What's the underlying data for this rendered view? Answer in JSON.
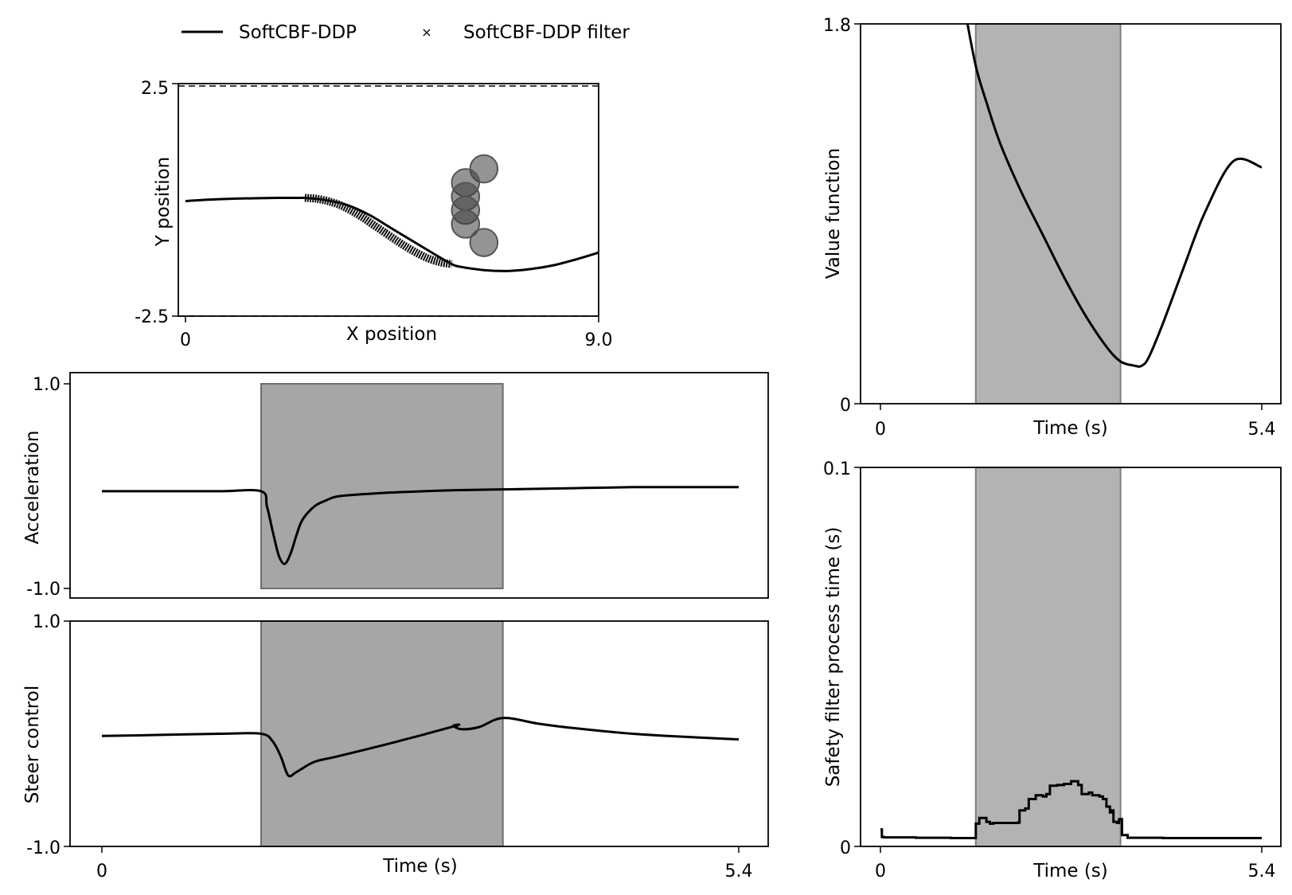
{
  "legend": {
    "items": [
      {
        "label": "SoftCBF-DDP",
        "marker": "line"
      },
      {
        "label": "SoftCBF-DDP filter",
        "marker": "x"
      }
    ]
  },
  "chart_data": [
    {
      "id": "trajectory",
      "type": "line",
      "xlabel": "X position",
      "ylabel": "Y position",
      "xlim": [
        0,
        9.0
      ],
      "ylim": [
        -2.5,
        2.5
      ],
      "xticks": [
        "0",
        "9.0"
      ],
      "yticks": [
        "-2.5",
        "2.5"
      ],
      "boundaries": [
        -2.5,
        2.5
      ],
      "obstacles": [
        {
          "x": 6.5,
          "y": 0.7,
          "r": 0.3
        },
        {
          "x": 6.1,
          "y": 0.4,
          "r": 0.3
        },
        {
          "x": 6.1,
          "y": 0.1,
          "r": 0.3
        },
        {
          "x": 6.1,
          "y": -0.2,
          "r": 0.3
        },
        {
          "x": 6.1,
          "y": -0.5,
          "r": 0.3
        },
        {
          "x": 6.5,
          "y": -0.9,
          "r": 0.3
        }
      ],
      "series": [
        {
          "name": "SoftCBF-DDP",
          "x": [
            0.0,
            0.5,
            1.0,
            1.5,
            2.0,
            2.5,
            2.6,
            3.0,
            3.5,
            4.0,
            4.5,
            5.0,
            5.5,
            5.8,
            6.0,
            6.5,
            7.0,
            7.5,
            8.0,
            8.5,
            9.0
          ],
          "y": [
            0.0,
            0.03,
            0.05,
            0.06,
            0.07,
            0.07,
            0.07,
            0.03,
            -0.08,
            -0.3,
            -0.6,
            -0.9,
            -1.2,
            -1.37,
            -1.43,
            -1.5,
            -1.52,
            -1.48,
            -1.4,
            -1.27,
            -1.12
          ]
        },
        {
          "name": "SoftCBF-DDP filter",
          "x": [
            2.6,
            2.85,
            3.1,
            3.35,
            3.6,
            3.85,
            4.1,
            4.35,
            4.6,
            4.85,
            5.1,
            5.35,
            5.6,
            5.8
          ],
          "y": [
            0.07,
            0.05,
            0.0,
            -0.08,
            -0.2,
            -0.35,
            -0.52,
            -0.69,
            -0.86,
            -1.02,
            -1.16,
            -1.27,
            -1.34,
            -1.37
          ]
        }
      ]
    },
    {
      "id": "acceleration",
      "type": "line",
      "xlabel": "",
      "ylabel": "Acceleration",
      "xlim": [
        0,
        5.4
      ],
      "ylim": [
        -1.0,
        1.0
      ],
      "yticks": [
        "-1.0",
        "1.0"
      ],
      "highlight": [
        1.35,
        3.4
      ],
      "series": [
        {
          "name": "SoftCBF-DDP",
          "x": [
            0.0,
            0.5,
            1.0,
            1.35,
            1.4,
            1.45,
            1.5,
            1.55,
            1.6,
            1.65,
            1.7,
            1.8,
            1.9,
            2.0,
            2.2,
            2.5,
            3.0,
            3.5,
            4.0,
            4.5,
            5.0,
            5.4
          ],
          "y": [
            -0.05,
            -0.05,
            -0.05,
            -0.05,
            -0.2,
            -0.45,
            -0.68,
            -0.76,
            -0.66,
            -0.48,
            -0.33,
            -0.2,
            -0.14,
            -0.1,
            -0.08,
            -0.06,
            -0.04,
            -0.03,
            -0.02,
            -0.01,
            -0.01,
            -0.01
          ]
        }
      ]
    },
    {
      "id": "steer",
      "type": "line",
      "xlabel": "Time (s)",
      "ylabel": "Steer control",
      "xlim": [
        0,
        5.4
      ],
      "ylim": [
        -1.0,
        1.0
      ],
      "xticks": [
        "0",
        "5.4"
      ],
      "yticks": [
        "-1.0",
        "1.0"
      ],
      "highlight": [
        1.35,
        3.4
      ],
      "series": [
        {
          "name": "SoftCBF-DDP",
          "x": [
            0.0,
            0.5,
            1.0,
            1.35,
            1.45,
            1.52,
            1.58,
            1.65,
            1.8,
            2.0,
            2.5,
            3.0,
            2.98,
            3.05,
            3.2,
            3.4,
            3.7,
            4.0,
            4.5,
            5.0,
            5.4
          ],
          "y": [
            -0.02,
            -0.01,
            0.0,
            0.0,
            -0.07,
            -0.21,
            -0.37,
            -0.34,
            -0.25,
            -0.2,
            -0.07,
            0.07,
            0.07,
            0.04,
            0.06,
            0.14,
            0.09,
            0.05,
            0.0,
            -0.03,
            -0.05
          ]
        }
      ]
    },
    {
      "id": "value",
      "type": "line",
      "xlabel": "Time (s)",
      "ylabel": "Value function",
      "xlim": [
        0,
        5.4
      ],
      "ylim": [
        0,
        1.8
      ],
      "xticks": [
        "0",
        "5.4"
      ],
      "yticks": [
        "0",
        "1.8"
      ],
      "highlight": [
        1.35,
        3.4
      ],
      "series": [
        {
          "name": "SoftCBF-DDP",
          "x": [
            1.2,
            1.35,
            1.5,
            1.7,
            2.0,
            2.3,
            2.6,
            2.9,
            3.2,
            3.4,
            3.6,
            3.7,
            3.8,
            4.0,
            4.3,
            4.6,
            5.0,
            5.4
          ],
          "y": [
            1.86,
            1.6,
            1.43,
            1.23,
            1.0,
            0.8,
            0.6,
            0.42,
            0.27,
            0.2,
            0.18,
            0.18,
            0.22,
            0.38,
            0.65,
            0.91,
            1.15,
            1.12
          ]
        }
      ]
    },
    {
      "id": "process-time",
      "type": "line",
      "xlabel": "Time (s)",
      "ylabel": "Safety filter process time (s)",
      "xlim": [
        0,
        5.4
      ],
      "ylim": [
        0,
        0.1
      ],
      "xticks": [
        "0",
        "5.4"
      ],
      "yticks": [
        "0",
        "0.1"
      ],
      "highlight": [
        1.35,
        3.4
      ],
      "series": [
        {
          "name": "SoftCBF-DDP filter",
          "x": [
            0.0,
            0.02,
            0.05,
            0.5,
            1.0,
            1.33,
            1.35,
            1.4,
            1.5,
            1.55,
            1.6,
            1.95,
            1.97,
            2.05,
            2.1,
            2.2,
            2.3,
            2.35,
            2.4,
            2.5,
            2.6,
            2.7,
            2.8,
            2.85,
            2.95,
            3.0,
            3.1,
            3.15,
            3.2,
            3.25,
            3.28,
            3.3,
            3.35,
            3.38,
            3.42,
            3.5,
            4.0,
            4.5,
            5.0,
            5.4
          ],
          "y": [
            0.0045,
            0.0025,
            0.0024,
            0.0023,
            0.0022,
            0.0022,
            0.006,
            0.0075,
            0.0065,
            0.006,
            0.0062,
            0.0063,
            0.0095,
            0.01,
            0.0125,
            0.0135,
            0.0132,
            0.0138,
            0.016,
            0.0162,
            0.0165,
            0.0172,
            0.0162,
            0.0138,
            0.0142,
            0.0135,
            0.0132,
            0.0125,
            0.0105,
            0.009,
            0.0095,
            0.0065,
            0.0062,
            0.0072,
            0.003,
            0.0023,
            0.0022,
            0.0022,
            0.0022,
            0.0022
          ]
        }
      ]
    }
  ]
}
